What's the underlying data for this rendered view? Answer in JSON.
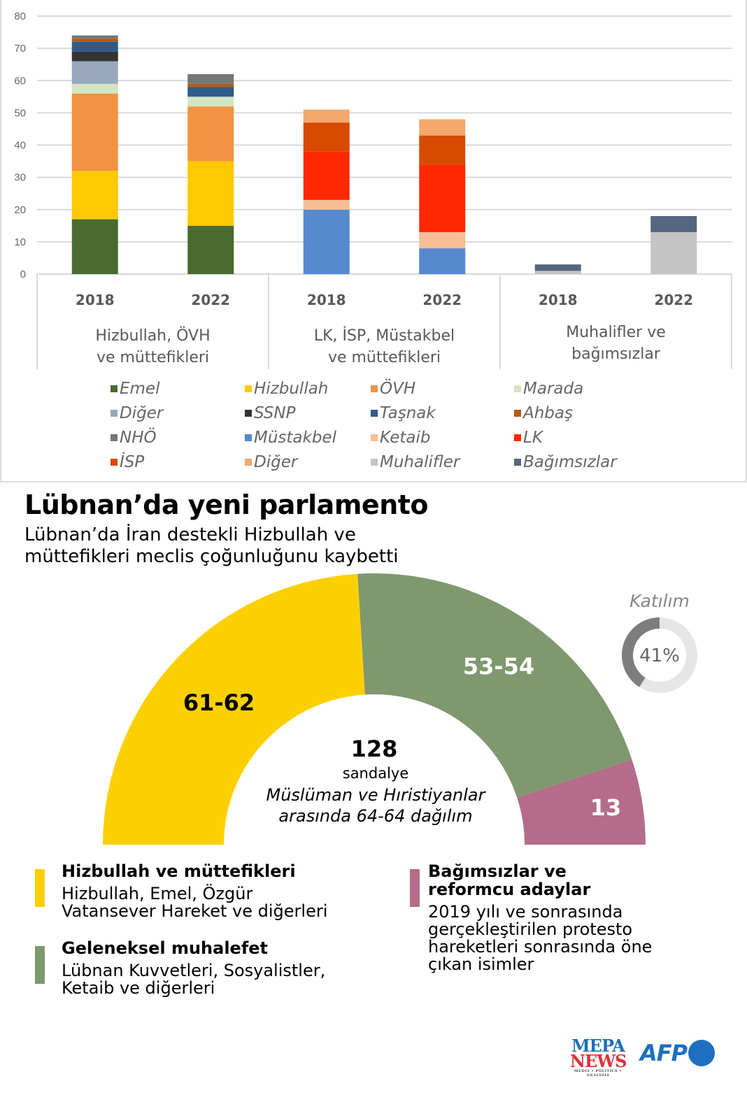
{
  "chart_data": [
    {
      "type": "bar",
      "stacked": true,
      "title": "",
      "xlabel": "",
      "ylabel": "",
      "ylim": [
        0,
        80
      ],
      "yticks": [
        0,
        10,
        20,
        30,
        40,
        50,
        60,
        70,
        80
      ],
      "grid": true,
      "legend_position": "bottom",
      "groups": [
        {
          "label": "Hizbullah, ÖVH ve müttefikleri",
          "label_lines": [
            "Hizbullah, ÖVH",
            "ve müttefikleri"
          ],
          "categories": [
            "2018",
            "2022"
          ],
          "series": [
            {
              "name": "Emel",
              "color": "#4a6b30",
              "values": [
                17,
                15
              ]
            },
            {
              "name": "Hizbullah",
              "color": "#ffc800",
              "values": [
                15,
                20
              ]
            },
            {
              "name": "ÖVH",
              "color": "#f29343",
              "values": [
                24,
                17
              ]
            },
            {
              "name": "Marada",
              "color": "#d2e6c4",
              "values": [
                3,
                3
              ]
            },
            {
              "name": "Diğer",
              "color": "#97a8bd",
              "values": [
                7,
                0
              ]
            },
            {
              "name": "SSNP",
              "color": "#333333",
              "values": [
                3,
                0
              ]
            },
            {
              "name": "Taşnak",
              "color": "#2f5a8c",
              "values": [
                3,
                3
              ]
            },
            {
              "name": "Ahbaş",
              "color": "#b55a12",
              "values": [
                1,
                1
              ]
            },
            {
              "name": "NHÖ",
              "color": "#767676",
              "values": [
                1,
                3
              ]
            }
          ]
        },
        {
          "label": "LK, İSP, Müstakbel ve müttefikleri",
          "label_lines": [
            "LK, İSP, Müstakbel",
            "ve müttefikleri"
          ],
          "categories": [
            "2018",
            "2022"
          ],
          "series": [
            {
              "name": "Müstakbel",
              "color": "#5689cf",
              "values": [
                20,
                8
              ]
            },
            {
              "name": "Ketaib",
              "color": "#f7be96",
              "values": [
                3,
                5
              ]
            },
            {
              "name": "LK",
              "color": "#ff2800",
              "values": [
                15,
                21
              ]
            },
            {
              "name": "İSP",
              "color": "#d84a00",
              "values": [
                9,
                9
              ]
            },
            {
              "name": "Diğer",
              "color": "#f4a86c",
              "values": [
                4,
                5
              ]
            }
          ]
        },
        {
          "label": "Muhalifler ve bağımsızlar",
          "label_lines": [
            "Muhalifler ve",
            "bağımsızlar"
          ],
          "categories": [
            "2018",
            "2022"
          ],
          "series": [
            {
              "name": "Muhalifler",
              "color": "#c4c4c4",
              "values": [
                1,
                13
              ]
            },
            {
              "name": "Bağımsızlar",
              "color": "#536780",
              "values": [
                2,
                5
              ]
            }
          ]
        }
      ],
      "legend": [
        {
          "name": "Emel",
          "color": "#4a6b30"
        },
        {
          "name": "Hizbullah",
          "color": "#ffc800"
        },
        {
          "name": "ÖVH",
          "color": "#f29343"
        },
        {
          "name": "Marada",
          "color": "#d2e6c4"
        },
        {
          "name": "Diğer",
          "color": "#97a8bd"
        },
        {
          "name": "SSNP",
          "color": "#333333"
        },
        {
          "name": "Taşnak",
          "color": "#2f5a8c"
        },
        {
          "name": "Ahbaş",
          "color": "#b55a12"
        },
        {
          "name": "NHÖ",
          "color": "#767676"
        },
        {
          "name": "Müstakbel",
          "color": "#5689cf"
        },
        {
          "name": "Ketaib",
          "color": "#f7be96"
        },
        {
          "name": "LK",
          "color": "#ff2800"
        },
        {
          "name": "İSP",
          "color": "#d84a00"
        },
        {
          "name": "Diğer",
          "color": "#f4a86c"
        },
        {
          "name": "Muhalifler",
          "color": "#c4c4c4"
        },
        {
          "name": "Bağımsızlar",
          "color": "#536780"
        }
      ]
    },
    {
      "type": "pie",
      "subtype": "half-donut parliament",
      "total_seats": 128,
      "slices": [
        {
          "name": "Hizbullah ve müttefikleri",
          "label": "61-62",
          "value": 61.5,
          "color": "#fcd000",
          "label_color": "#000000"
        },
        {
          "name": "Geleneksel muhalefet",
          "label": "53-54",
          "value": 53.5,
          "color": "#7f986e",
          "label_color": "#ffffff"
        },
        {
          "name": "Bağımsızlar ve reformcu adaylar",
          "label": "13",
          "value": 13,
          "color": "#b46c8a",
          "label_color": "#ffffff"
        }
      ]
    },
    {
      "type": "pie",
      "subtype": "donut",
      "title": "Katılım",
      "value_percent": 41,
      "label": "41%",
      "colors": {
        "filled": "#7d7d7d",
        "rest": "#e6e6e6"
      }
    }
  ],
  "header": {
    "title": "Lübnan’da yeni parlamento",
    "subtitle_lines": [
      "Lübnan’da İran destekli Hizbullah ve",
      "müttefikleri meclis çoğunluğunu kaybetti"
    ]
  },
  "parliament_center": {
    "number": "128",
    "unit": "sandalye",
    "note_lines": [
      "Müslüman ve Hıristiyanlar",
      "arasında 64-64 dağılım"
    ]
  },
  "key": [
    {
      "title_lines": [
        "Hizbullah ve müttefikleri"
      ],
      "desc_lines": [
        "Hizbullah, Emel, Özgür",
        "Vatansever Hareket ve diğerleri"
      ],
      "color": "#fcd000"
    },
    {
      "title_lines": [
        "Geleneksel muhalefet"
      ],
      "desc_lines": [
        "Lübnan Kuvvetleri, Sosyalistler,",
        "Ketaib ve diğerleri"
      ],
      "color": "#7f986e"
    },
    {
      "title_lines": [
        "Bağımsızlar ve",
        "reformcu adaylar"
      ],
      "desc_lines": [
        "2019 yılı ve sonrasında",
        "gerçekleştirilen protesto",
        "hareketleri sonrasında öne",
        "çıkan isimler"
      ],
      "color": "#b46c8a"
    }
  ],
  "logos": {
    "mepa_line1": "MEPA",
    "mepa_line2": "NEWS",
    "mepa_tagline": "MEDIA • POLITICS • ANALYSIS",
    "afp": "AFP"
  }
}
